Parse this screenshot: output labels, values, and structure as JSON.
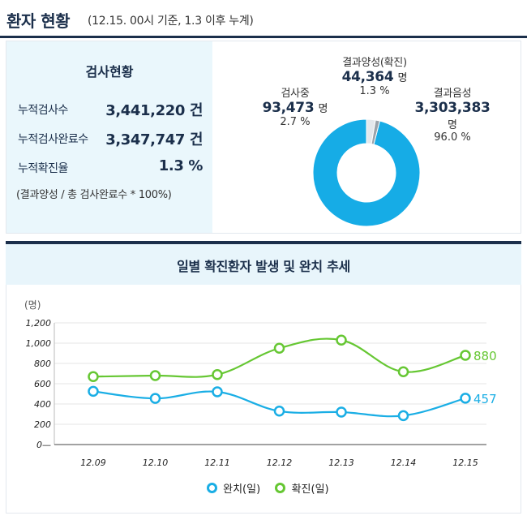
{
  "header": {
    "title": "환자 현황",
    "subtitle": "(12.15. 00시 기준, 1.3 이후 누계)"
  },
  "stats": {
    "heading": "검사현황",
    "rows": [
      {
        "label": "누적검사수",
        "value": "3,441,220 건"
      },
      {
        "label": "누적검사완료수",
        "value": "3,347,747 건"
      },
      {
        "label": "누적확진율",
        "value": "1.3 %"
      }
    ],
    "note": "(결과양성 / 총 검사완료수 * 100%)"
  },
  "donut": {
    "colors": {
      "negative": "#16ace6",
      "pending": "#e4e8ec",
      "positive": "#9aa3ab"
    },
    "testing": {
      "name": "검사중",
      "value": "93,473",
      "unit": "명",
      "pct": "2.7 %",
      "share": 2.7
    },
    "positive": {
      "name": "결과양성(확진)",
      "value": "44,364",
      "unit": "명",
      "pct": "1.3 %",
      "share": 1.3
    },
    "negative": {
      "name": "결과음성",
      "value": "3,303,383",
      "unit": "명",
      "pct": "96.0 %",
      "share": 96.0
    }
  },
  "chart_title": "일별 확진환자 발생 및 완치 추세",
  "chart_data": {
    "type": "line",
    "title": "일별 확진환자 발생 및 완치 추세",
    "ylabel": "(명)",
    "categories": [
      "12.09",
      "12.10",
      "12.11",
      "12.12",
      "12.13",
      "12.14",
      "12.15"
    ],
    "yticks": [
      "0",
      "200",
      "400",
      "600",
      "800",
      "1,000",
      "1,200"
    ],
    "ylim": [
      0,
      1200
    ],
    "series": [
      {
        "name": "완치(일)",
        "color": "#1aaee5",
        "values": [
          525,
          455,
          520,
          330,
          320,
          285,
          457
        ],
        "end_label": "457"
      },
      {
        "name": "확진(일)",
        "color": "#66c733",
        "values": [
          670,
          680,
          690,
          950,
          1030,
          718,
          880
        ],
        "end_label": "880"
      }
    ],
    "grid": true,
    "legend": "bottom"
  }
}
